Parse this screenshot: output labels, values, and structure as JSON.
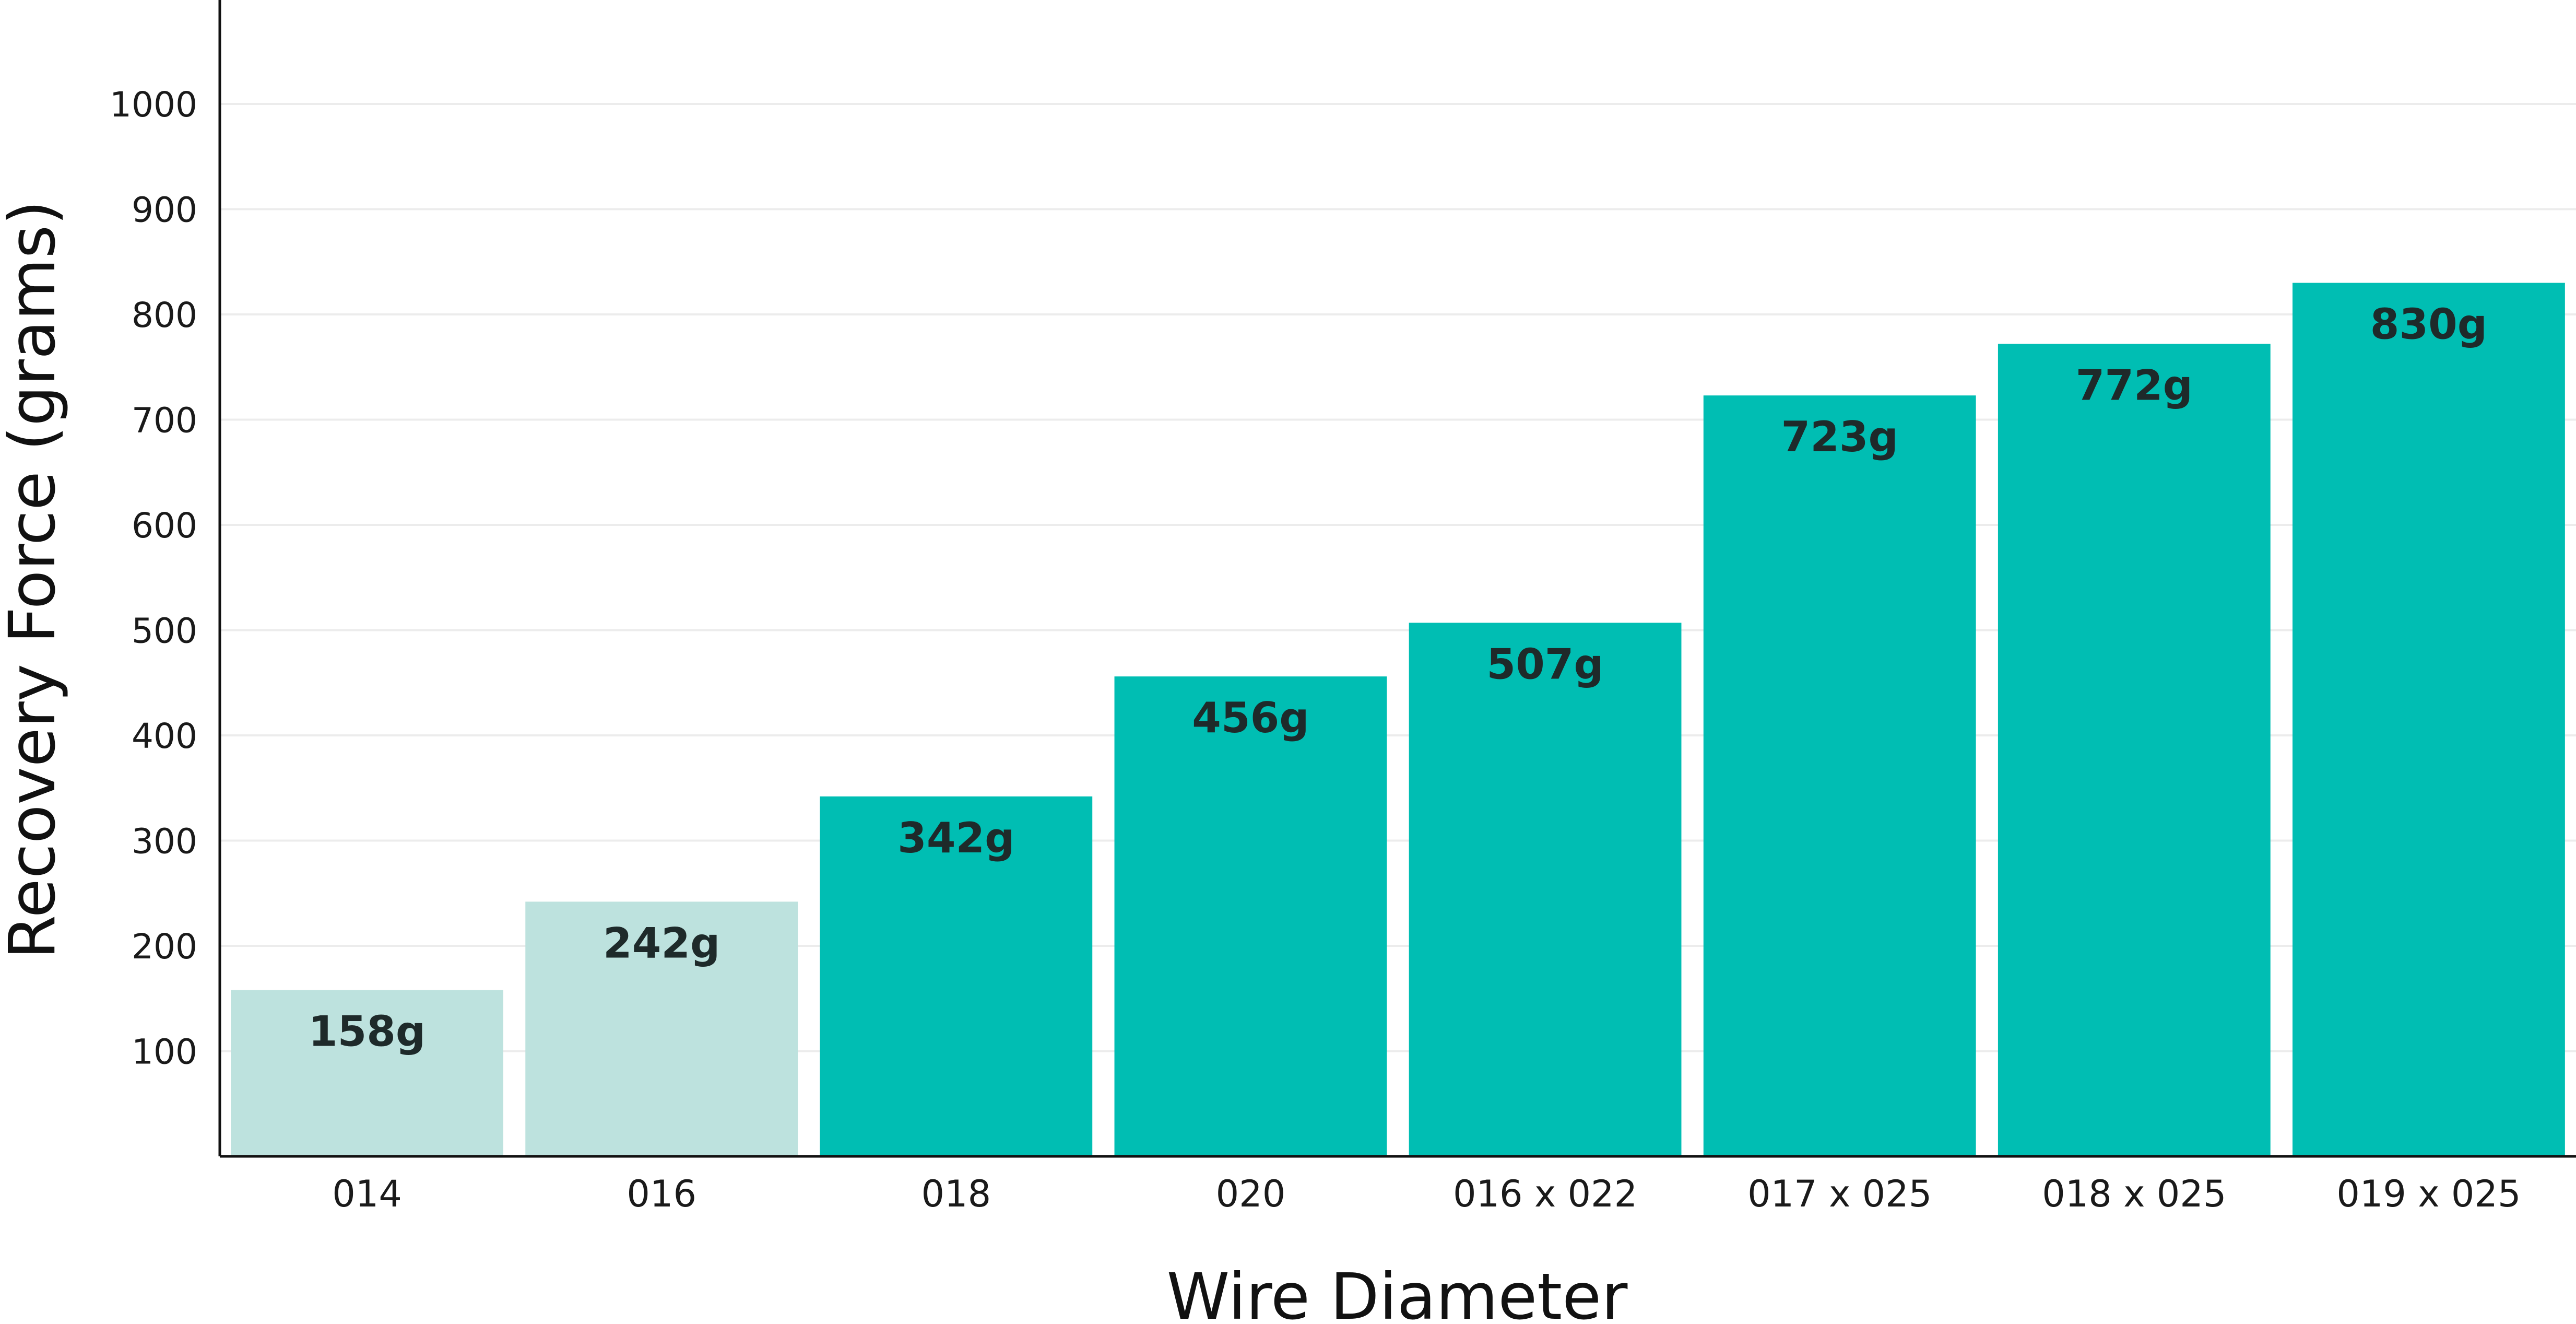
{
  "chart_data": {
    "type": "bar",
    "title": "",
    "xlabel": "Wire Diameter",
    "ylabel": "Recovery Force (grams)",
    "categories": [
      "014",
      "016",
      "018",
      "020",
      "016 x 022",
      "017 x 025",
      "018 x 025",
      "019 x 025"
    ],
    "values": [
      158,
      242,
      342,
      456,
      507,
      723,
      772,
      830
    ],
    "data_labels": [
      "158g",
      "242g",
      "342g",
      "456g",
      "507g",
      "723g",
      "772g",
      "830g"
    ],
    "ylim": [
      0,
      1100
    ],
    "yticks": [
      100,
      200,
      300,
      400,
      500,
      600,
      700,
      800,
      900,
      1000
    ],
    "ytick_labels": [
      "100",
      "200",
      "300",
      "400",
      "500",
      "600",
      "700",
      "800",
      "900",
      "1000"
    ],
    "grid": "horizontal",
    "legend": "none",
    "colors": {
      "light_bar": "#bde2de",
      "dark_bar": "#00beb3",
      "bar_color_per_category": [
        "#bde2de",
        "#bde2de",
        "#00beb3",
        "#00beb3",
        "#00beb3",
        "#00beb3",
        "#00beb3",
        "#00beb3"
      ]
    }
  }
}
